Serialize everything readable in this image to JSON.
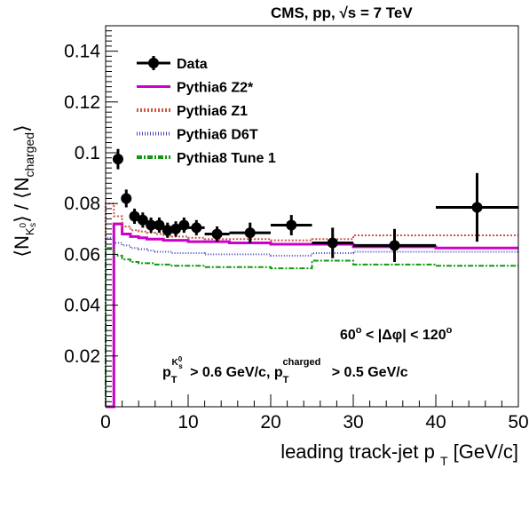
{
  "chart_data": {
    "type": "line",
    "header": "CMS, pp, √s = 7 TeV",
    "xlabel": "leading track-jet p T [GeV/c]",
    "ylabel": "⟨N K0s⟩ / ⟨N charged⟩",
    "xlim": [
      0,
      50
    ],
    "ylim": [
      0,
      0.15
    ],
    "xticks": [
      0,
      10,
      20,
      30,
      40,
      50
    ],
    "yticks": [
      0.02,
      0.04,
      0.06,
      0.08,
      0.1,
      0.12,
      0.14
    ],
    "annotation_angle": "60° < |Δφ| < 120°",
    "annotation_cuts": "p T K0s > 0.6 GeV/c, p T charged > 0.5 GeV/c",
    "legend": {
      "position": "top-left",
      "entries": [
        {
          "label": "Data",
          "style": "marker",
          "color": "#000000"
        },
        {
          "label": "Pythia6 Z2*",
          "style": "solid",
          "color": "#cc00cc"
        },
        {
          "label": "Pythia6 Z1",
          "style": "dashed",
          "color": "#cc5544"
        },
        {
          "label": "Pythia6 D6T",
          "style": "dotted",
          "color": "#4444bb"
        },
        {
          "label": "Pythia8 Tune 1",
          "style": "dashdot",
          "color": "#119911"
        }
      ]
    },
    "data": {
      "name": "Data",
      "x": [
        1.5,
        2.5,
        3.5,
        4.5,
        5.5,
        6.5,
        7.5,
        8.5,
        9.5,
        11.0,
        13.5,
        17.5,
        22.5,
        27.5,
        35.0,
        45.0
      ],
      "xerr": [
        0.5,
        0.5,
        0.5,
        0.5,
        0.5,
        0.5,
        0.5,
        0.5,
        0.5,
        1.0,
        1.5,
        2.5,
        2.5,
        2.5,
        5.0,
        5.0
      ],
      "y": [
        0.0975,
        0.082,
        0.075,
        0.0735,
        0.0715,
        0.0715,
        0.0695,
        0.07,
        0.0715,
        0.0705,
        0.068,
        0.0685,
        0.0715,
        0.0645,
        0.0635,
        0.0785
      ],
      "yerr": [
        0.004,
        0.0035,
        0.003,
        0.003,
        0.003,
        0.003,
        0.003,
        0.003,
        0.003,
        0.003,
        0.003,
        0.004,
        0.004,
        0.006,
        0.0065,
        0.0135
      ]
    },
    "bin_edges": [
      0,
      1,
      2,
      3,
      4,
      5,
      6,
      7,
      8,
      9,
      10,
      12,
      15,
      20,
      25,
      30,
      40,
      50
    ],
    "series": [
      {
        "name": "Pythia6 Z2*",
        "color": "#cc00cc",
        "dash": "",
        "width": 3,
        "values": [
          0,
          0.072,
          0.068,
          0.067,
          0.0665,
          0.066,
          0.066,
          0.0655,
          0.0655,
          0.0655,
          0.065,
          0.065,
          0.0645,
          0.064,
          0.064,
          0.063,
          0.0625
        ]
      },
      {
        "name": "Pythia6 Z1",
        "color": "#cc5544",
        "dash": "2,2",
        "width": 2,
        "values": [
          0.08,
          0.075,
          0.071,
          0.0695,
          0.069,
          0.0685,
          0.068,
          0.0675,
          0.067,
          0.067,
          0.0665,
          0.066,
          0.066,
          0.0655,
          0.066,
          0.0675,
          0.0675
        ]
      },
      {
        "name": "Pythia6 D6T",
        "color": "#4444bb",
        "dash": "1,2",
        "width": 2,
        "values": [
          0.0665,
          0.0645,
          0.0635,
          0.0625,
          0.062,
          0.0615,
          0.061,
          0.061,
          0.0605,
          0.0605,
          0.0605,
          0.06,
          0.06,
          0.0595,
          0.0605,
          0.061,
          0.061
        ]
      },
      {
        "name": "Pythia8 Tune 1",
        "color": "#119911",
        "dash": "6,2,2,2",
        "width": 2,
        "values": [
          0.0625,
          0.0595,
          0.058,
          0.057,
          0.0565,
          0.0565,
          0.056,
          0.056,
          0.0555,
          0.0555,
          0.0555,
          0.055,
          0.055,
          0.0545,
          0.0575,
          0.056,
          0.0555
        ]
      }
    ]
  }
}
